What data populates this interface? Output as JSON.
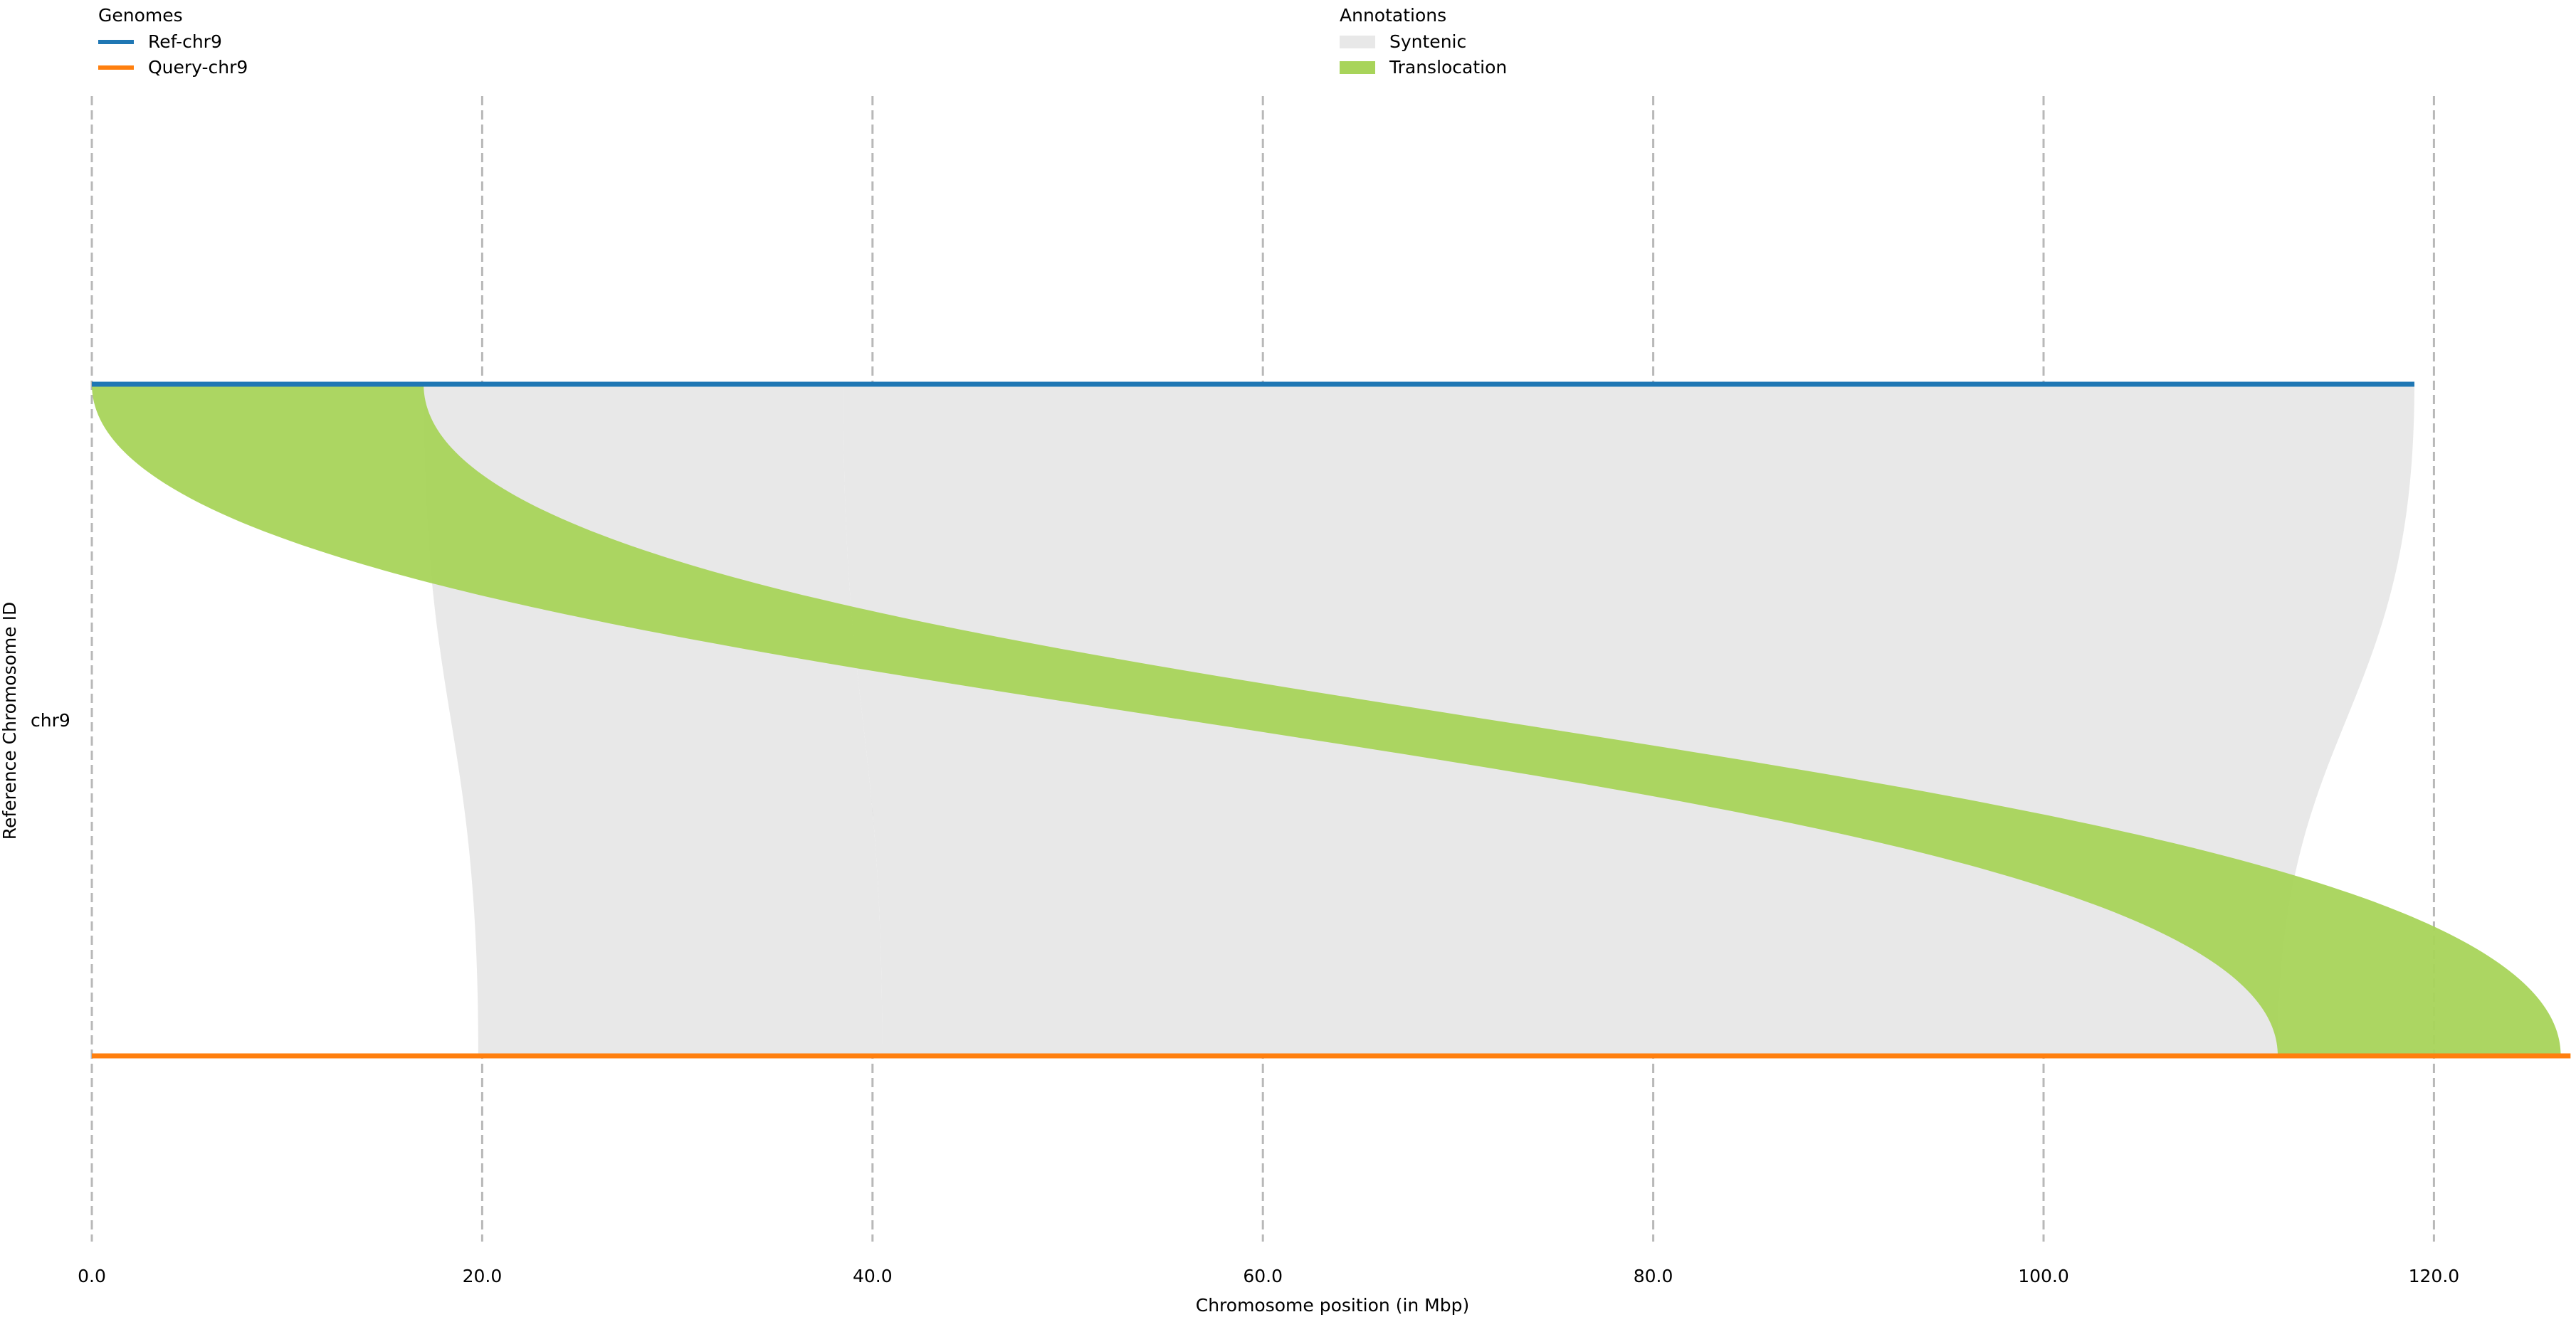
{
  "chart_data": {
    "type": "synteny",
    "xlabel": "Chromosome position (in Mbp)",
    "ylabel": "Reference Chromosome ID",
    "chromosome_label": "chr9",
    "xlim": [
      0,
      127
    ],
    "x_ticks": [
      0,
      20,
      40,
      60,
      80,
      100,
      120
    ],
    "x_tick_labels": [
      "0.0",
      "20.0",
      "40.0",
      "60.0",
      "80.0",
      "100.0",
      "120.0"
    ],
    "grid": "vertical-dashed",
    "legends": {
      "genomes": {
        "title": "Genomes",
        "placement": "top-left",
        "items": [
          {
            "name": "Ref-chr9",
            "color": "#1f77b4"
          },
          {
            "name": "Query-chr9",
            "color": "#ff7f0e"
          }
        ]
      },
      "annotations": {
        "title": "Annotations",
        "placement": "top-center",
        "items": [
          {
            "name": "Syntenic",
            "color": "#e8e8e8"
          },
          {
            "name": "Translocation",
            "color": "#a8d45a"
          }
        ]
      }
    },
    "genomes": [
      {
        "name": "Ref-chr9",
        "role": "reference",
        "start": 0,
        "end": 119.0,
        "color": "#1f77b4"
      },
      {
        "name": "Query-chr9",
        "role": "query",
        "start": 0,
        "end": 127.0,
        "color": "#ff7f0e"
      }
    ],
    "alignments": [
      {
        "type": "Syntenic",
        "ref_start": 17.0,
        "ref_end": 38.5,
        "query_start": 19.8,
        "query_end": 40.5
      },
      {
        "type": "Syntenic",
        "ref_start": 38.5,
        "ref_end": 119.0,
        "query_start": 40.5,
        "query_end": 112.0
      },
      {
        "type": "Translocation",
        "ref_start": 0.0,
        "ref_end": 17.0,
        "query_start": 112.0,
        "query_end": 126.5
      }
    ]
  }
}
